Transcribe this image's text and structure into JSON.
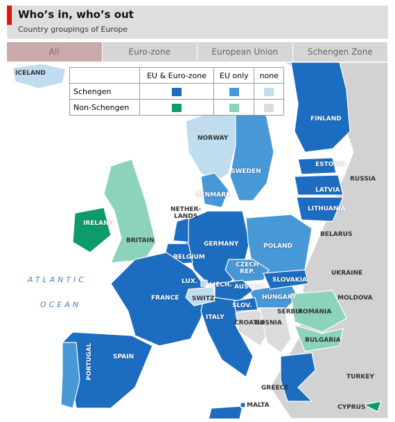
{
  "header": {
    "title": "Who’s in, who’s out",
    "subtitle": "Country groupings of Europe"
  },
  "tabs": [
    "All",
    "Euro-zone",
    "European Union",
    "Schengen Zone"
  ],
  "legend": {
    "columns": [
      "EU & Euro-zone",
      "EU only",
      "none"
    ],
    "rows": [
      {
        "label": "Schengen",
        "colors": [
          "#1c6cc0",
          "#4897d6",
          "#c0dcef"
        ]
      },
      {
        "label": "Non-Schengen",
        "colors": [
          "#0f9a6c",
          "#8cd3bb",
          "#dcdcdc"
        ]
      }
    ]
  },
  "seas": [
    "ATLANTIC",
    "OCEAN"
  ],
  "countries": [
    "ICELAND",
    "NORWAY",
    "SWEDEN",
    "FINLAND",
    "ESTONIA",
    "LATVIA",
    "LITHUANIA",
    "RUSSIA",
    "DENMARK",
    "IRELAND",
    "BRITAIN",
    "NETHER-\nLANDS",
    "BELARUS",
    "GERMANY",
    "POLAND",
    "BELGIUM",
    "LUX.",
    "LIECH.",
    "CZECH\nREP.",
    "SLOVAKIA",
    "UKRAINE",
    "FRANCE",
    "SWITZ.",
    "AUSTRIA",
    "HUNGARY",
    "MOLDOVA",
    "SLOV.",
    "ROMANIA",
    "CROATIA",
    "BOSNIA",
    "SERBIA",
    "BULGARIA",
    "ITALY",
    "PORTUGAL",
    "SPAIN",
    "GREECE",
    "TURKEY",
    "MALTA",
    "CYPRUS"
  ]
}
